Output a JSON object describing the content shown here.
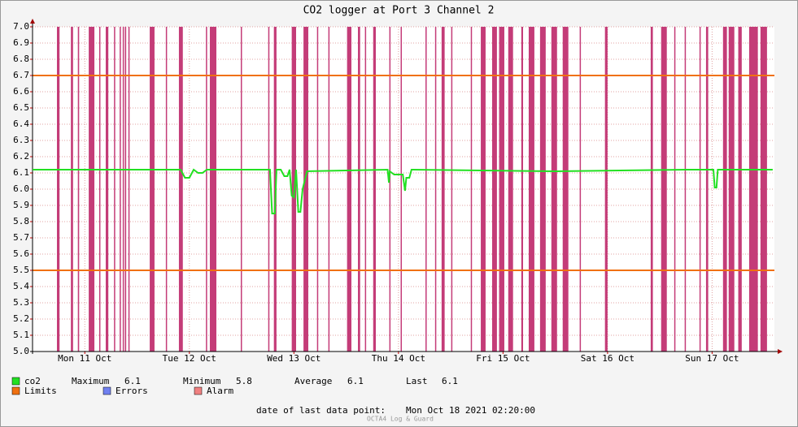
{
  "chart_data": {
    "type": "line",
    "title": "CO2 logger at Port 3 Channel 2",
    "xlim": [
      0,
      170.3
    ],
    "xticks": [
      {
        "value": 12,
        "label": "Mon 11 Oct"
      },
      {
        "value": 36,
        "label": "Tue 12 Oct"
      },
      {
        "value": 60,
        "label": "Wed 13 Oct"
      },
      {
        "value": 84,
        "label": "Thu 14 Oct"
      },
      {
        "value": 108,
        "label": "Fri 15 Oct"
      },
      {
        "value": 132,
        "label": "Sat 16 Oct"
      },
      {
        "value": 156,
        "label": "Sun 17 Oct"
      }
    ],
    "ylim": [
      5,
      7
    ],
    "yticks": [
      {
        "value": 5,
        "label": "5.0"
      },
      5.1,
      5.2,
      5.3,
      5.4,
      5.5,
      5.6,
      5.7,
      5.8,
      5.9,
      {
        "value": 6,
        "label": "6.0"
      },
      6.1,
      6.2,
      6.3,
      6.4,
      6.5,
      6.6,
      6.7,
      6.8,
      6.9,
      {
        "value": 7,
        "label": "7.0"
      }
    ],
    "grid": true,
    "series": [
      {
        "name": "co2",
        "color": "#22e022",
        "x": [
          0,
          34,
          35,
          36,
          37,
          38,
          39,
          40,
          54.5,
          55,
          55.6,
          56,
          57,
          57.8,
          58.5,
          59,
          59.5,
          60,
          60.5,
          61,
          61.5,
          62,
          63,
          81.5,
          81.8,
          82,
          83,
          85,
          85.5,
          85.8,
          86.5,
          87,
          120,
          150,
          156.3,
          156.6,
          157,
          157.3,
          169.9
        ],
        "values": [
          6.12,
          6.12,
          6.07,
          6.07,
          6.12,
          6.1,
          6.1,
          6.12,
          6.12,
          5.85,
          5.85,
          6.12,
          6.12,
          6.08,
          6.08,
          6.12,
          5.96,
          5.95,
          6.12,
          5.86,
          5.86,
          6.0,
          6.11,
          6.12,
          6.04,
          6.11,
          6.09,
          6.09,
          5.99,
          6.07,
          6.07,
          6.12,
          6.11,
          6.12,
          6.12,
          6.01,
          6.01,
          6.12,
          6.12
        ]
      }
    ],
    "stats": [
      {
        "label": "Maximum",
        "value": 6.1
      },
      {
        "label": "Minimum",
        "value": 5.8
      },
      {
        "label": "Average",
        "value": 6.1
      },
      {
        "label": "Last",
        "value": 6.1
      }
    ],
    "limits": {
      "name": "Limits",
      "color": "#f07010",
      "values": [
        5.5,
        6.7
      ]
    },
    "errors": {
      "name": "Errors",
      "color": "#7080f0"
    },
    "alarm": {
      "name": "Alarm",
      "color": "#f08080",
      "bar_color": "#c43c78",
      "intervals": [
        [
          5.6,
          6.2
        ],
        [
          8.8,
          9.3
        ],
        [
          10.4,
          10.7
        ],
        [
          12.9,
          14.2
        ],
        [
          15.3,
          15.5
        ],
        [
          16.8,
          17.4
        ],
        [
          18.7,
          18.9
        ],
        [
          20.0,
          20.2
        ],
        [
          20.7,
          20.9
        ],
        [
          21.2,
          21.5
        ],
        [
          22.0,
          22.2
        ],
        [
          26.9,
          28.0
        ],
        [
          30.6,
          30.8
        ],
        [
          33.6,
          34.5
        ],
        [
          39.8,
          40.0
        ],
        [
          40.7,
          42.2
        ],
        [
          47.8,
          48.0
        ],
        [
          54.1,
          54.3
        ],
        [
          55.4,
          56.0
        ],
        [
          59.5,
          60.5
        ],
        [
          62.2,
          63.3
        ],
        [
          65.3,
          65.5
        ],
        [
          67.9,
          68.1
        ],
        [
          72.2,
          73.2
        ],
        [
          74.7,
          75.2
        ],
        [
          76.3,
          76.5
        ],
        [
          78.2,
          78.8
        ],
        [
          81.9,
          82.1
        ],
        [
          84.5,
          84.7
        ],
        [
          90.2,
          90.4
        ],
        [
          92.4,
          92.6
        ],
        [
          93.9,
          94.6
        ],
        [
          96.1,
          96.3
        ],
        [
          100.6,
          100.8
        ],
        [
          102.9,
          104.0
        ],
        [
          105.5,
          106.6
        ],
        [
          107.1,
          108.3
        ],
        [
          109.2,
          110.3
        ],
        [
          112.2,
          112.6
        ],
        [
          113.9,
          115.2
        ],
        [
          116.5,
          117.8
        ],
        [
          119.1,
          120.4
        ],
        [
          121.7,
          123.0
        ],
        [
          125.6,
          125.8
        ],
        [
          131.4,
          132.0
        ],
        [
          141.9,
          142.4
        ],
        [
          144.3,
          145.6
        ],
        [
          147.3,
          147.5
        ],
        [
          149.7,
          149.9
        ],
        [
          153.1,
          153.3
        ],
        [
          154.6,
          155.1
        ],
        [
          158.5,
          159.4
        ],
        [
          159.8,
          161.1
        ],
        [
          162.0,
          162.8
        ],
        [
          164.5,
          166.5
        ],
        [
          167.1,
          168.6
        ]
      ]
    },
    "footer_label": "date of last data point:",
    "last_data_point": "Mon Oct 18 2021 02:20:00",
    "watermark": "OCTA4 Log & Guard"
  }
}
